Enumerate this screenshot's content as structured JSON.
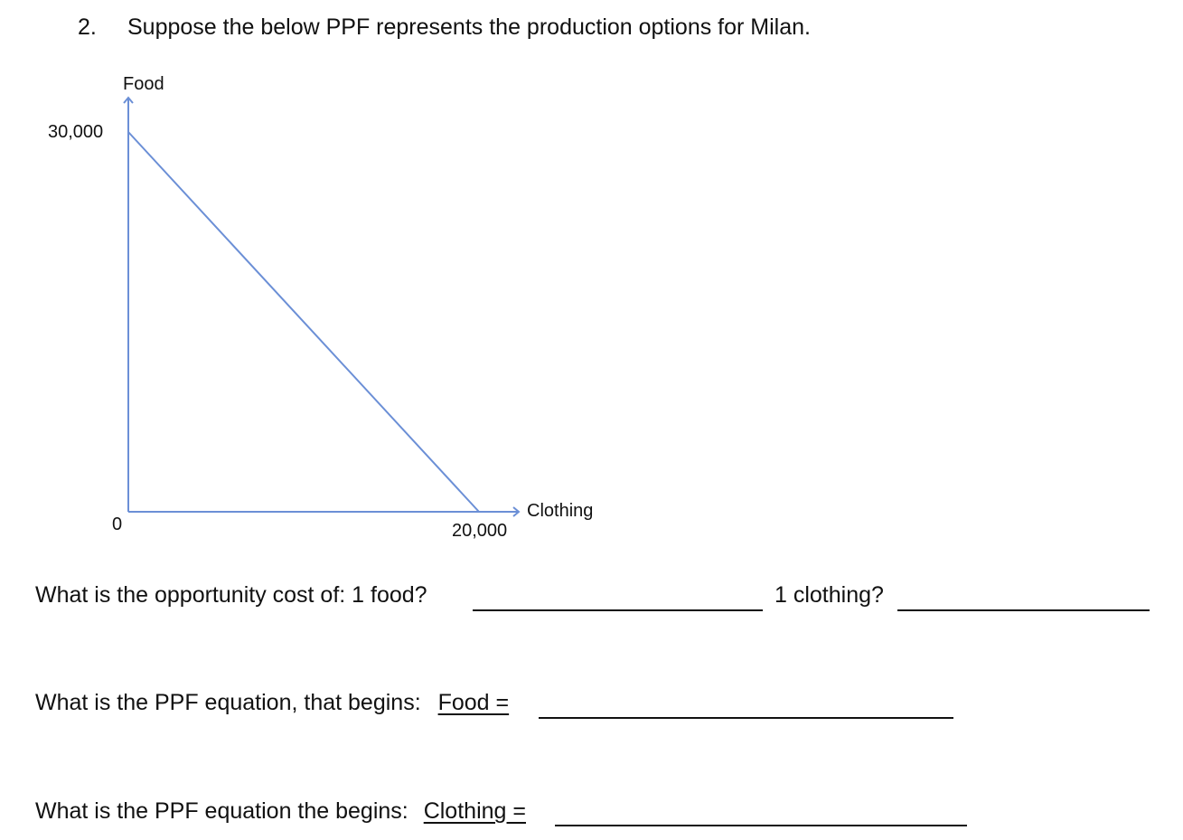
{
  "question": {
    "number": "2.",
    "prompt": "Suppose the below PPF represents the production options for Milan."
  },
  "chart_data": {
    "type": "line",
    "xlabel": "Clothing",
    "ylabel": "Food",
    "x": [
      0,
      20000
    ],
    "y": [
      30000,
      0
    ],
    "xlim": [
      0,
      20000
    ],
    "ylim": [
      0,
      30000
    ],
    "x_ticks": [
      {
        "value": 0,
        "label": "0"
      },
      {
        "value": 20000,
        "label": "20,000"
      }
    ],
    "y_ticks": [
      {
        "value": 30000,
        "label": "30,000"
      }
    ],
    "grid": false,
    "line_color": "#6b8fd6",
    "axis_color": "#6b8fd6"
  },
  "questions": {
    "opportunity_cost": {
      "prompt": "What is the opportunity cost of: 1 food?",
      "second_prompt": "1 clothing?"
    },
    "food_equation": {
      "prompt": "What is the PPF equation, that begins:",
      "start": "Food ="
    },
    "clothing_equation": {
      "prompt": "What is the PPF equation the begins:",
      "start": "Clothing ="
    }
  }
}
